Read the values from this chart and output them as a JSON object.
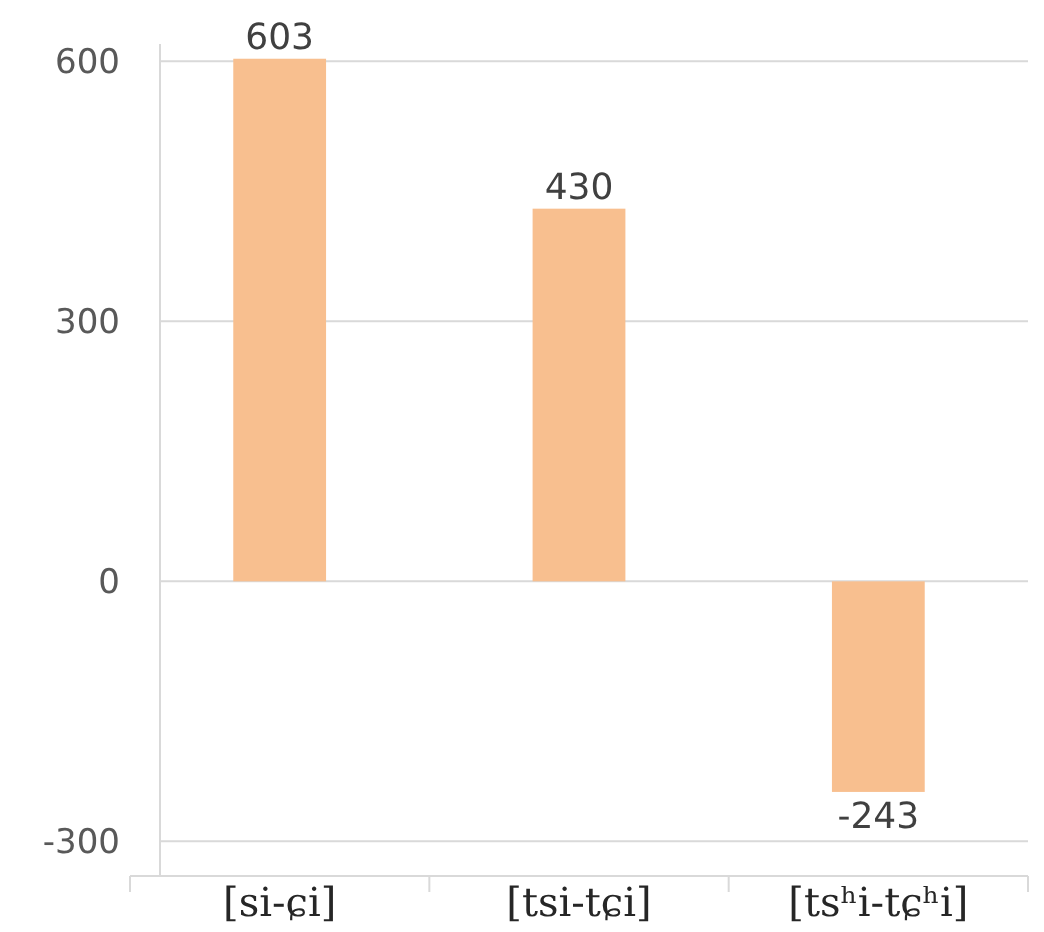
{
  "chart_data": {
    "type": "bar",
    "categories": [
      "[si-ɕi]",
      "[tsi-tɕi]",
      "[tsʰi-tɕʰi]"
    ],
    "values": [
      603,
      430,
      -243
    ],
    "color": "#f8bf8f",
    "ylim": [
      -340,
      620
    ],
    "yticks": [
      -300,
      0,
      300,
      600
    ],
    "grid": "y",
    "data_labels": true
  }
}
